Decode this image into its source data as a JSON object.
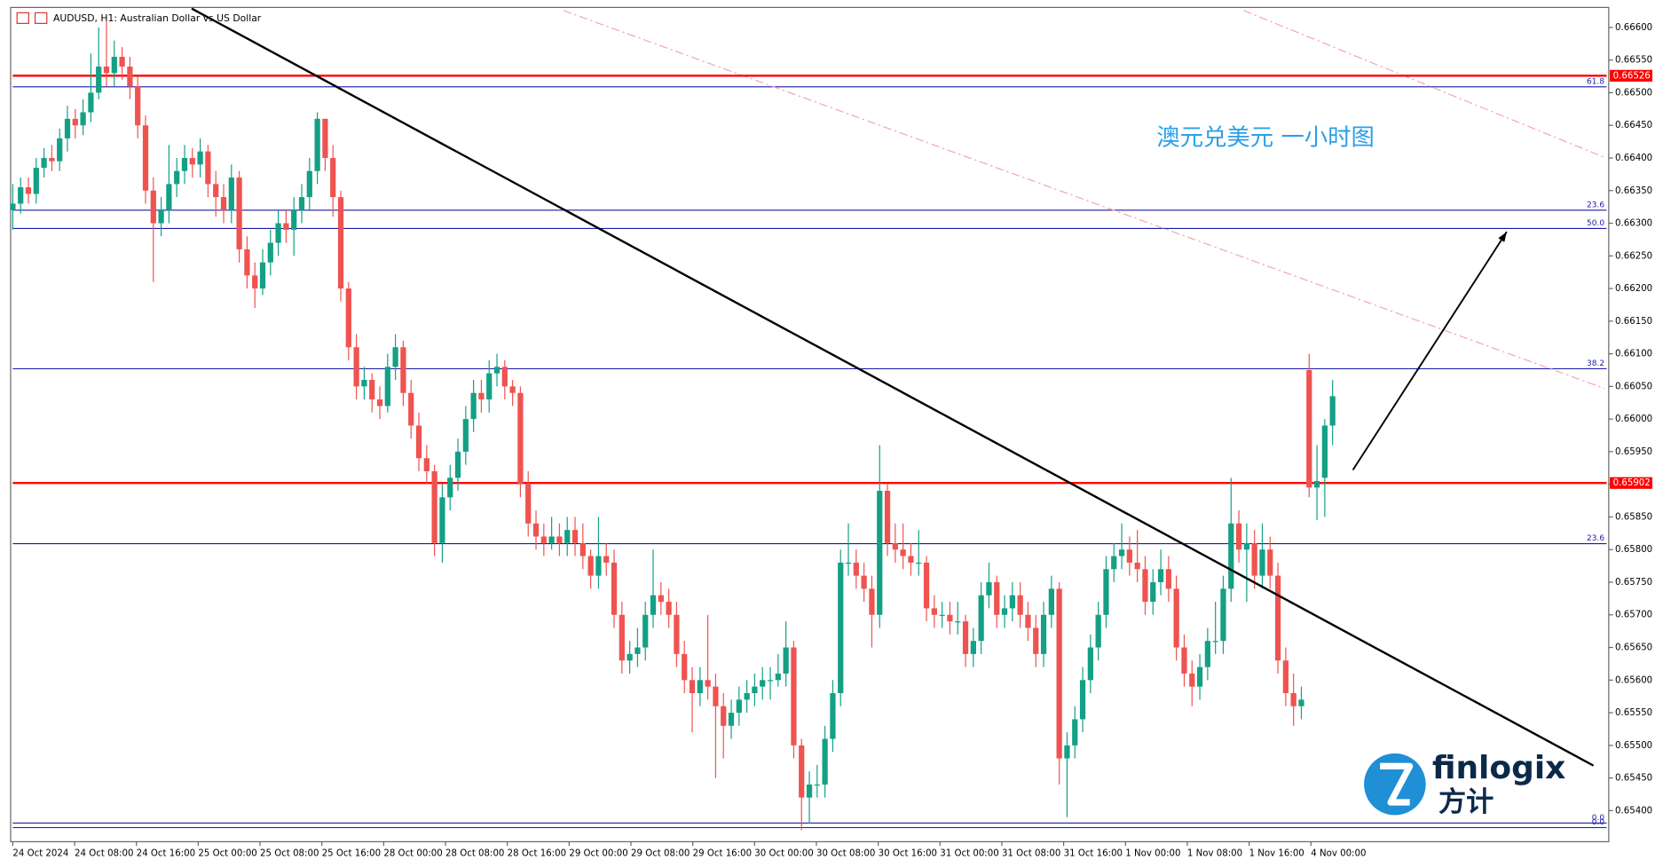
{
  "chart_data": {
    "type": "candlestick",
    "title": "AUDUSD, H1:  Australian Dollar vs US Dollar",
    "annotation": "澳元兑美元 一小时图",
    "brand": {
      "name": "finlogix",
      "name_cn": "方计"
    },
    "colors": {
      "up": "#14a085",
      "down": "#ef5350"
    },
    "ylim": [
      0.65354,
      0.66629
    ],
    "yticks": [
      {
        "value": 0.654,
        "label": "0.65400"
      },
      {
        "value": 0.6545,
        "label": "0.65450"
      },
      {
        "value": 0.655,
        "label": "0.65500"
      },
      {
        "value": 0.6555,
        "label": "0.65550"
      },
      {
        "value": 0.656,
        "label": "0.65600"
      },
      {
        "value": 0.6565,
        "label": "0.65650"
      },
      {
        "value": 0.657,
        "label": "0.65700"
      },
      {
        "value": 0.6575,
        "label": "0.65750"
      },
      {
        "value": 0.658,
        "label": "0.65800"
      },
      {
        "value": 0.6585,
        "label": "0.65850"
      },
      {
        "value": 0.659,
        "label": "0.65900"
      },
      {
        "value": 0.6595,
        "label": "0.65950"
      },
      {
        "value": 0.66,
        "label": "0.66000"
      },
      {
        "value": 0.6605,
        "label": "0.66050"
      },
      {
        "value": 0.661,
        "label": "0.66100"
      },
      {
        "value": 0.6615,
        "label": "0.66150"
      },
      {
        "value": 0.662,
        "label": "0.66200"
      },
      {
        "value": 0.6625,
        "label": "0.66250"
      },
      {
        "value": 0.663,
        "label": "0.66300"
      },
      {
        "value": 0.6635,
        "label": "0.66350"
      },
      {
        "value": 0.664,
        "label": "0.66400"
      },
      {
        "value": 0.6645,
        "label": "0.66450"
      },
      {
        "value": 0.665,
        "label": "0.66500"
      },
      {
        "value": 0.6655,
        "label": "0.66550"
      },
      {
        "value": 0.666,
        "label": "0.66600"
      }
    ],
    "x_labels": [
      "24 Oct 2024",
      "24 Oct 08:00",
      "24 Oct 16:00",
      "25 Oct 00:00",
      "25 Oct 08:00",
      "25 Oct 16:00",
      "28 Oct 00:00",
      "28 Oct 08:00",
      "28 Oct 16:00",
      "29 Oct 00:00",
      "29 Oct 08:00",
      "29 Oct 16:00",
      "30 Oct 00:00",
      "30 Oct 08:00",
      "30 Oct 16:00",
      "31 Oct 00:00",
      "31 Oct 08:00",
      "31 Oct 16:00",
      "1 Nov 00:00",
      "1 Nov 08:00",
      "1 Nov 16:00",
      "4 Nov 00:00"
    ],
    "price_lines": [
      {
        "value": 0.66526,
        "label": "0.66526",
        "color": "#ff0000"
      },
      {
        "value": 0.65902,
        "label": "0.65902",
        "color": "#ff0000"
      }
    ],
    "levels": [
      {
        "value": 0.66509,
        "label": "61.8"
      },
      {
        "value": 0.6632,
        "label": "23.6"
      },
      {
        "value": 0.66292,
        "label": "50.0"
      },
      {
        "value": 0.66077,
        "label": "38.2"
      },
      {
        "value": 0.65809,
        "label": "23.6"
      },
      {
        "value": 0.65381,
        "label": "0.0"
      },
      {
        "value": 0.65374,
        "label": "0.0"
      }
    ],
    "level_color": "#1a1aa8",
    "trendline": {
      "x": [
        22.9,
        202.4
      ],
      "y": [
        0.66629,
        0.65469
      ]
    },
    "arrow": {
      "x": [
        171.6,
        191.3
      ],
      "y": [
        0.65922,
        0.66287
      ]
    },
    "dashed_lines": [
      {
        "x": [
          70.5,
          203.8
        ],
        "y": [
          0.66626,
          0.66047
        ]
      },
      {
        "x": [
          157.6,
          203.8
        ],
        "y": [
          0.66626,
          0.66401
        ]
      }
    ],
    "ohlc": [
      [
        0.6632,
        0.6636,
        0.6629,
        0.6633
      ],
      [
        0.6633,
        0.6637,
        0.66315,
        0.66355
      ],
      [
        0.66355,
        0.6637,
        0.6633,
        0.66345
      ],
      [
        0.66345,
        0.664,
        0.6633,
        0.66385
      ],
      [
        0.66385,
        0.66415,
        0.6637,
        0.664
      ],
      [
        0.664,
        0.6642,
        0.6638,
        0.66395
      ],
      [
        0.66395,
        0.66445,
        0.6638,
        0.6643
      ],
      [
        0.6643,
        0.6648,
        0.6641,
        0.6646
      ],
      [
        0.6646,
        0.66475,
        0.6643,
        0.6645
      ],
      [
        0.6645,
        0.6649,
        0.66435,
        0.6647
      ],
      [
        0.6647,
        0.6656,
        0.66455,
        0.665
      ],
      [
        0.665,
        0.666,
        0.6649,
        0.6654
      ],
      [
        0.6654,
        0.6661,
        0.6651,
        0.6653
      ],
      [
        0.6653,
        0.6658,
        0.6651,
        0.66555
      ],
      [
        0.66555,
        0.6657,
        0.6652,
        0.6654
      ],
      [
        0.6654,
        0.66555,
        0.6649,
        0.6651
      ],
      [
        0.6651,
        0.66525,
        0.6643,
        0.6645
      ],
      [
        0.6645,
        0.66465,
        0.6633,
        0.6635
      ],
      [
        0.6635,
        0.6637,
        0.6621,
        0.663
      ],
      [
        0.663,
        0.6634,
        0.6628,
        0.6632
      ],
      [
        0.6632,
        0.6642,
        0.663,
        0.6636
      ],
      [
        0.6636,
        0.664,
        0.6634,
        0.6638
      ],
      [
        0.6638,
        0.6642,
        0.6636,
        0.664
      ],
      [
        0.664,
        0.66415,
        0.6637,
        0.6639
      ],
      [
        0.6639,
        0.6643,
        0.6637,
        0.6641
      ],
      [
        0.6641,
        0.6642,
        0.6634,
        0.6636
      ],
      [
        0.6636,
        0.6638,
        0.6631,
        0.6634
      ],
      [
        0.6634,
        0.6636,
        0.663,
        0.6632
      ],
      [
        0.6632,
        0.6639,
        0.663,
        0.6637
      ],
      [
        0.6637,
        0.6638,
        0.6624,
        0.6626
      ],
      [
        0.6626,
        0.6628,
        0.662,
        0.6622
      ],
      [
        0.6622,
        0.6624,
        0.6617,
        0.662
      ],
      [
        0.662,
        0.6626,
        0.6619,
        0.6624
      ],
      [
        0.6624,
        0.6629,
        0.6622,
        0.6627
      ],
      [
        0.6627,
        0.6632,
        0.6625,
        0.663
      ],
      [
        0.663,
        0.6632,
        0.6627,
        0.6629
      ],
      [
        0.6629,
        0.6634,
        0.6625,
        0.6632
      ],
      [
        0.6632,
        0.6636,
        0.663,
        0.6634
      ],
      [
        0.6634,
        0.664,
        0.6632,
        0.6638
      ],
      [
        0.6638,
        0.6647,
        0.6636,
        0.6646
      ],
      [
        0.6646,
        0.6646,
        0.6638,
        0.664
      ],
      [
        0.664,
        0.6642,
        0.6631,
        0.6634
      ],
      [
        0.6634,
        0.6635,
        0.6618,
        0.662
      ],
      [
        0.662,
        0.6621,
        0.6609,
        0.6611
      ],
      [
        0.6611,
        0.6613,
        0.6603,
        0.6605
      ],
      [
        0.6605,
        0.6608,
        0.6603,
        0.6606
      ],
      [
        0.6606,
        0.6607,
        0.6601,
        0.6603
      ],
      [
        0.6603,
        0.6605,
        0.66,
        0.6602
      ],
      [
        0.6602,
        0.661,
        0.6601,
        0.6608
      ],
      [
        0.6608,
        0.6613,
        0.6606,
        0.6611
      ],
      [
        0.6611,
        0.6612,
        0.6602,
        0.6604
      ],
      [
        0.6604,
        0.6606,
        0.6597,
        0.6599
      ],
      [
        0.6599,
        0.6601,
        0.6592,
        0.6594
      ],
      [
        0.6594,
        0.6596,
        0.659,
        0.6592
      ],
      [
        0.6592,
        0.6593,
        0.6579,
        0.6581
      ],
      [
        0.6581,
        0.659,
        0.6578,
        0.6588
      ],
      [
        0.6588,
        0.6593,
        0.6586,
        0.6591
      ],
      [
        0.6591,
        0.6597,
        0.6589,
        0.6595
      ],
      [
        0.6595,
        0.6602,
        0.6593,
        0.66
      ],
      [
        0.66,
        0.6606,
        0.6598,
        0.6604
      ],
      [
        0.6604,
        0.6606,
        0.6601,
        0.6603
      ],
      [
        0.6603,
        0.6609,
        0.6601,
        0.6607
      ],
      [
        0.6607,
        0.661,
        0.6605,
        0.6608
      ],
      [
        0.6608,
        0.6609,
        0.6603,
        0.6605
      ],
      [
        0.6605,
        0.6606,
        0.6602,
        0.6604
      ],
      [
        0.6604,
        0.6605,
        0.6588,
        0.659
      ],
      [
        0.659,
        0.6592,
        0.6582,
        0.6584
      ],
      [
        0.6584,
        0.6586,
        0.658,
        0.6582
      ],
      [
        0.6582,
        0.6584,
        0.6579,
        0.6581
      ],
      [
        0.6581,
        0.6585,
        0.658,
        0.6582
      ],
      [
        0.6582,
        0.6584,
        0.6579,
        0.6581
      ],
      [
        0.6581,
        0.6585,
        0.6579,
        0.6583
      ],
      [
        0.6583,
        0.6585,
        0.6579,
        0.6581
      ],
      [
        0.6581,
        0.6584,
        0.6577,
        0.6579
      ],
      [
        0.6579,
        0.658,
        0.6574,
        0.6576
      ],
      [
        0.6576,
        0.6585,
        0.6574,
        0.6579
      ],
      [
        0.6579,
        0.6581,
        0.6576,
        0.6578
      ],
      [
        0.6578,
        0.658,
        0.6568,
        0.657
      ],
      [
        0.657,
        0.6572,
        0.6561,
        0.6563
      ],
      [
        0.6563,
        0.6566,
        0.6561,
        0.6564
      ],
      [
        0.6564,
        0.6568,
        0.6562,
        0.6565
      ],
      [
        0.6565,
        0.6572,
        0.6563,
        0.657
      ],
      [
        0.657,
        0.658,
        0.6568,
        0.6573
      ],
      [
        0.6573,
        0.6575,
        0.657,
        0.6572
      ],
      [
        0.6572,
        0.6574,
        0.6568,
        0.657
      ],
      [
        0.657,
        0.6572,
        0.6562,
        0.6564
      ],
      [
        0.6564,
        0.6566,
        0.6558,
        0.656
      ],
      [
        0.656,
        0.6562,
        0.6552,
        0.6558
      ],
      [
        0.6558,
        0.6562,
        0.6556,
        0.656
      ],
      [
        0.656,
        0.657,
        0.6557,
        0.6559
      ],
      [
        0.6559,
        0.6561,
        0.6545,
        0.6556
      ],
      [
        0.6556,
        0.6558,
        0.6548,
        0.6553
      ],
      [
        0.6553,
        0.6557,
        0.6551,
        0.6555
      ],
      [
        0.6555,
        0.6559,
        0.6553,
        0.6557
      ],
      [
        0.6557,
        0.656,
        0.6555,
        0.6558
      ],
      [
        0.6558,
        0.6561,
        0.6556,
        0.6559
      ],
      [
        0.6559,
        0.6562,
        0.6557,
        0.656
      ],
      [
        0.656,
        0.6562,
        0.6557,
        0.656
      ],
      [
        0.656,
        0.6564,
        0.6559,
        0.6561
      ],
      [
        0.6561,
        0.6569,
        0.6559,
        0.6565
      ],
      [
        0.6565,
        0.6566,
        0.6548,
        0.655
      ],
      [
        0.655,
        0.6551,
        0.6537,
        0.6542
      ],
      [
        0.6542,
        0.6546,
        0.6538,
        0.6544
      ],
      [
        0.6544,
        0.6547,
        0.6542,
        0.6544
      ],
      [
        0.6544,
        0.6553,
        0.6542,
        0.6551
      ],
      [
        0.6551,
        0.656,
        0.6549,
        0.6558
      ],
      [
        0.6558,
        0.658,
        0.6556,
        0.6578
      ],
      [
        0.6578,
        0.6584,
        0.6576,
        0.6578
      ],
      [
        0.6578,
        0.658,
        0.6574,
        0.6576
      ],
      [
        0.6576,
        0.6578,
        0.6572,
        0.6574
      ],
      [
        0.6574,
        0.6576,
        0.6565,
        0.657
      ],
      [
        0.657,
        0.6596,
        0.6568,
        0.6589
      ],
      [
        0.6589,
        0.659,
        0.6579,
        0.6581
      ],
      [
        0.6581,
        0.6584,
        0.6578,
        0.658
      ],
      [
        0.658,
        0.6584,
        0.6577,
        0.6579
      ],
      [
        0.6579,
        0.6581,
        0.6576,
        0.6578
      ],
      [
        0.6578,
        0.6583,
        0.6576,
        0.6578
      ],
      [
        0.6578,
        0.6579,
        0.6569,
        0.6571
      ],
      [
        0.6571,
        0.6573,
        0.6568,
        0.657
      ],
      [
        0.657,
        0.6572,
        0.6568,
        0.657
      ],
      [
        0.657,
        0.6572,
        0.6567,
        0.6569
      ],
      [
        0.6569,
        0.6572,
        0.6567,
        0.6569
      ],
      [
        0.6569,
        0.657,
        0.6562,
        0.6564
      ],
      [
        0.6564,
        0.6568,
        0.6562,
        0.6566
      ],
      [
        0.6566,
        0.6575,
        0.6564,
        0.6573
      ],
      [
        0.6573,
        0.6578,
        0.6571,
        0.6575
      ],
      [
        0.6575,
        0.6576,
        0.6568,
        0.657
      ],
      [
        0.657,
        0.6573,
        0.6568,
        0.6571
      ],
      [
        0.6571,
        0.6575,
        0.6569,
        0.6573
      ],
      [
        0.6573,
        0.6575,
        0.6568,
        0.657
      ],
      [
        0.657,
        0.6572,
        0.6566,
        0.6568
      ],
      [
        0.6568,
        0.657,
        0.6562,
        0.6564
      ],
      [
        0.6564,
        0.6572,
        0.6562,
        0.657
      ],
      [
        0.657,
        0.6576,
        0.6568,
        0.6574
      ],
      [
        0.6574,
        0.6575,
        0.6544,
        0.6548
      ],
      [
        0.6548,
        0.6552,
        0.6539,
        0.655
      ],
      [
        0.655,
        0.6556,
        0.6548,
        0.6554
      ],
      [
        0.6554,
        0.6562,
        0.6552,
        0.656
      ],
      [
        0.656,
        0.6567,
        0.6558,
        0.6565
      ],
      [
        0.6565,
        0.6572,
        0.6563,
        0.657
      ],
      [
        0.657,
        0.6579,
        0.6568,
        0.6577
      ],
      [
        0.6577,
        0.6581,
        0.6575,
        0.6579
      ],
      [
        0.6579,
        0.6584,
        0.6577,
        0.658
      ],
      [
        0.658,
        0.6582,
        0.6576,
        0.6578
      ],
      [
        0.6578,
        0.6583,
        0.6575,
        0.6577
      ],
      [
        0.6577,
        0.6579,
        0.657,
        0.6572
      ],
      [
        0.6572,
        0.6577,
        0.657,
        0.6575
      ],
      [
        0.6575,
        0.658,
        0.6573,
        0.6577
      ],
      [
        0.6577,
        0.6579,
        0.6572,
        0.6574
      ],
      [
        0.6574,
        0.6576,
        0.6563,
        0.6565
      ],
      [
        0.6565,
        0.6567,
        0.6559,
        0.6561
      ],
      [
        0.6561,
        0.6563,
        0.6556,
        0.6559
      ],
      [
        0.6559,
        0.6564,
        0.6557,
        0.6562
      ],
      [
        0.6562,
        0.6568,
        0.656,
        0.6566
      ],
      [
        0.6566,
        0.6572,
        0.6564,
        0.6566
      ],
      [
        0.6566,
        0.6576,
        0.6564,
        0.6574
      ],
      [
        0.6574,
        0.6591,
        0.6572,
        0.6584
      ],
      [
        0.6584,
        0.6586,
        0.6578,
        0.658
      ],
      [
        0.658,
        0.6584,
        0.6572,
        0.6581
      ],
      [
        0.6581,
        0.6583,
        0.6574,
        0.6576
      ],
      [
        0.6576,
        0.6584,
        0.6574,
        0.658
      ],
      [
        0.658,
        0.6582,
        0.6574,
        0.6576
      ],
      [
        0.6576,
        0.6578,
        0.6561,
        0.6563
      ],
      [
        0.6563,
        0.6565,
        0.6556,
        0.6558
      ],
      [
        0.6558,
        0.6561,
        0.6553,
        0.6556
      ],
      [
        0.6556,
        0.6559,
        0.6554,
        0.6557
      ],
      [
        0.66075,
        0.661,
        0.6588,
        0.65895
      ],
      [
        0.65895,
        0.6596,
        0.65845,
        0.65905
      ],
      [
        0.6591,
        0.66,
        0.6585,
        0.6599
      ],
      [
        0.6599,
        0.6606,
        0.6596,
        0.66035
      ]
    ]
  }
}
